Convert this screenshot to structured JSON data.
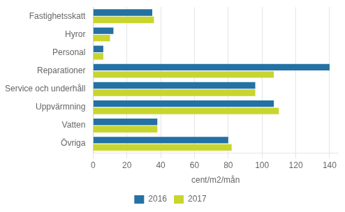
{
  "chart_data": {
    "type": "bar",
    "orientation": "horizontal",
    "categories": [
      "Fastighetsskatt",
      "Hyror",
      "Personal",
      "Reparationer",
      "Service och underhåll",
      "Uppvärmning",
      "Vatten",
      "Övriga"
    ],
    "series": [
      {
        "name": "2016",
        "color": "#2471a3",
        "values": [
          35,
          12,
          6,
          140,
          96,
          107,
          38,
          80
        ]
      },
      {
        "name": "2017",
        "color": "#c8d52e",
        "values": [
          36,
          10,
          6,
          107,
          96,
          110,
          38,
          82
        ]
      }
    ],
    "xlabel": "cent/m2/mån",
    "xlim": [
      0,
      145
    ],
    "xticks": [
      0,
      20,
      40,
      60,
      80,
      100,
      120,
      140
    ],
    "grid": true,
    "legend": "bottom"
  }
}
